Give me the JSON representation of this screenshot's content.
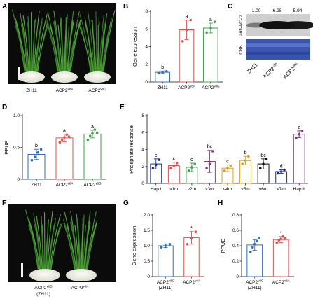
{
  "panel_labels": {
    "A": "A",
    "B": "B",
    "C": "C",
    "D": "D",
    "E": "E",
    "F": "F",
    "G": "G",
    "H": "H"
  },
  "photo_a": {
    "labels": [
      "ZH11",
      "ACP2",
      "ACP2"
    ],
    "sup": [
      "",
      "v8A",
      "v8G"
    ]
  },
  "photo_f": {
    "labels": [
      "ACP2",
      "ACP2"
    ],
    "sup": [
      "v8G",
      "v8A"
    ],
    "sub": [
      "(ZH11)",
      ""
    ]
  },
  "blot": {
    "values": [
      "1.00",
      "6.28",
      "5.94"
    ],
    "antibody": "anti-ACP2",
    "stain": "CBB",
    "lanes": [
      {
        "base": "ZH11",
        "sup": ""
      },
      {
        "base": "ACP2",
        "sup": "v8A"
      },
      {
        "base": "ACP2",
        "sup": "v8G"
      }
    ]
  },
  "colors": {
    "blue": "#2e6fbf",
    "red": "#e05050",
    "green": "#3ea34a",
    "orange": "#e0a020",
    "purple": "#8a3a8a",
    "navy": "#1f2f88",
    "black": "#111111",
    "bg": "#ffffff",
    "blot_band": "#111111",
    "cbb": "#3a55b0"
  },
  "chart_data": [
    {
      "id": "B",
      "type": "bar",
      "ylabel": "Gene expression",
      "ylim": [
        0,
        8
      ],
      "yticks": [
        0,
        2,
        4,
        6,
        8
      ],
      "categories": [
        {
          "base": "ZH11",
          "sup": ""
        },
        {
          "base": "ACP2",
          "sup": "v8A"
        },
        {
          "base": "ACP2",
          "sup": "v8G"
        }
      ],
      "values": [
        1.1,
        5.9,
        6.1
      ],
      "errors": [
        0.15,
        1.1,
        0.55
      ],
      "points": [
        [
          1.0,
          1.1,
          1.2
        ],
        [
          4.6,
          5.9,
          7.0
        ],
        [
          5.6,
          6.1,
          6.8
        ]
      ],
      "letters": [
        "b",
        "a",
        "a"
      ],
      "colors": [
        "blue",
        "red",
        "green"
      ]
    },
    {
      "id": "D",
      "type": "bar",
      "ylabel": "PPUE",
      "ylim": [
        0,
        1.0
      ],
      "yticks": [
        0,
        0.5,
        1.0
      ],
      "ytick_labels": [
        "0",
        "0.5",
        "1.0"
      ],
      "categories": [
        {
          "base": "ZH11",
          "sup": ""
        },
        {
          "base": "ACP2",
          "sup": "v8A"
        },
        {
          "base": "ACP2",
          "sup": "v8G"
        }
      ],
      "values": [
        0.39,
        0.65,
        0.71
      ],
      "errors": [
        0.08,
        0.06,
        0.06
      ],
      "points": [
        [
          0.3,
          0.35,
          0.42,
          0.47
        ],
        [
          0.58,
          0.62,
          0.66,
          0.7,
          0.67
        ],
        [
          0.62,
          0.68,
          0.72,
          0.78,
          0.73
        ]
      ],
      "letters": [
        "b",
        "a",
        "a"
      ],
      "colors": [
        "blue",
        "red",
        "green"
      ]
    },
    {
      "id": "E",
      "type": "bar",
      "ylabel": "Phosphate response",
      "ylim": [
        0,
        8
      ],
      "yticks": [
        0,
        2,
        4,
        6,
        8
      ],
      "categories": [
        {
          "base": "Hap I",
          "sup": ""
        },
        {
          "base": "v1m",
          "sup": ""
        },
        {
          "base": "v2m",
          "sup": ""
        },
        {
          "base": "v3m",
          "sup": ""
        },
        {
          "base": "v4m",
          "sup": ""
        },
        {
          "base": "v5m",
          "sup": ""
        },
        {
          "base": "v6m",
          "sup": ""
        },
        {
          "base": "v7m",
          "sup": ""
        },
        {
          "base": "Hap II",
          "sup": ""
        }
      ],
      "values": [
        2.3,
        2.1,
        1.9,
        2.6,
        1.8,
        2.7,
        2.3,
        1.4,
        5.8
      ],
      "errors": [
        0.6,
        0.4,
        0.5,
        1.3,
        0.4,
        0.5,
        0.6,
        0.2,
        0.4
      ],
      "points": [
        [
          1.8,
          2.2,
          2.8
        ],
        [
          1.8,
          2.1,
          2.4
        ],
        [
          1.5,
          1.9,
          2.3
        ],
        [
          1.8,
          2.3,
          3.8
        ],
        [
          1.5,
          1.8,
          2.1
        ],
        [
          2.3,
          2.7,
          3.2
        ],
        [
          1.8,
          2.3,
          2.9
        ],
        [
          1.2,
          1.4,
          1.6
        ],
        [
          5.4,
          5.8,
          6.2
        ]
      ],
      "letters": [
        "c",
        "c",
        "c",
        "bc",
        "c",
        "b",
        "bc",
        "d",
        "a"
      ],
      "colors": [
        "navy",
        "red",
        "green",
        "purple",
        "orange",
        "orange",
        "black",
        "navy",
        "purple"
      ]
    },
    {
      "id": "G",
      "type": "bar",
      "ylabel": "Gene expression",
      "ylim": [
        0,
        2.0
      ],
      "yticks": [
        0,
        0.5,
        1.0,
        1.5,
        2.0
      ],
      "ytick_labels": [
        "0",
        "0.5",
        "1.0",
        "1.5",
        "2.0"
      ],
      "categories": [
        {
          "base": "ACP2",
          "sup": "v8G",
          "sub": "(ZH11)"
        },
        {
          "base": "ACP2",
          "sup": "v8A",
          "sub": ""
        }
      ],
      "values": [
        1.0,
        1.26
      ],
      "errors": [
        0.06,
        0.2
      ],
      "points": [
        [
          0.95,
          1.0,
          1.05
        ],
        [
          1.05,
          1.25,
          1.45
        ]
      ],
      "letters": [
        "",
        "*"
      ],
      "colors": [
        "blue",
        "red"
      ]
    },
    {
      "id": "H",
      "type": "bar",
      "ylabel": "PPUE",
      "ylim": [
        0,
        0.8
      ],
      "yticks": [
        0,
        0.2,
        0.4,
        0.6,
        0.8
      ],
      "ytick_labels": [
        "0",
        "0.2",
        "0.4",
        "0.6",
        "0.8"
      ],
      "categories": [
        {
          "base": "ACP2",
          "sup": "v8G",
          "sub": "(ZH11)"
        },
        {
          "base": "ACP2",
          "sup": "v8A",
          "sub": ""
        }
      ],
      "values": [
        0.41,
        0.48
      ],
      "errors": [
        0.07,
        0.04
      ],
      "points": [
        [
          0.32,
          0.38,
          0.42,
          0.46,
          0.5
        ],
        [
          0.44,
          0.47,
          0.49,
          0.52,
          0.5
        ]
      ],
      "letters": [
        "",
        "*"
      ],
      "colors": [
        "blue",
        "red"
      ]
    }
  ]
}
